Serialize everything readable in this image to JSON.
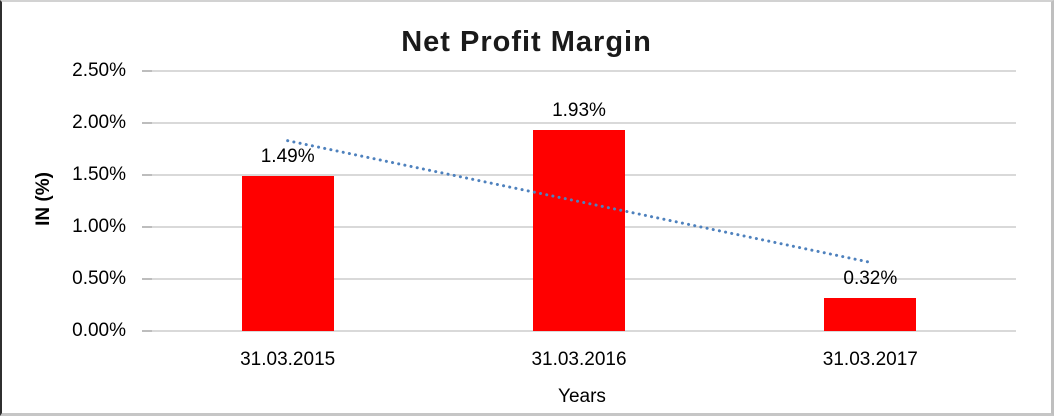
{
  "chart_data": {
    "type": "bar",
    "title": "Net Profit Margin",
    "xlabel": "Years",
    "ylabel": "IN (%)",
    "categories": [
      "31.03.2015",
      "31.03.2016",
      "31.03.2017"
    ],
    "values": [
      1.49,
      1.93,
      0.32
    ],
    "data_labels": [
      "1.49%",
      "1.93%",
      "0.32%"
    ],
    "ytick_labels": [
      "2.50%",
      "2.00%",
      "1.50%",
      "1.00%",
      "0.50%",
      "0.00%"
    ],
    "ytick_values": [
      2.5,
      2.0,
      1.5,
      1.0,
      0.5,
      0.0
    ],
    "ylim": [
      0,
      2.5
    ],
    "grid": true,
    "legend": "none",
    "colors": {
      "bar": "#ff0000",
      "gridline": "#d9d9d9",
      "trendline": "#4e81bd",
      "text": "#000000"
    },
    "trendline": {
      "type": "linear",
      "style": "dotted",
      "y_start": 1.83,
      "y_end": 0.66
    }
  }
}
